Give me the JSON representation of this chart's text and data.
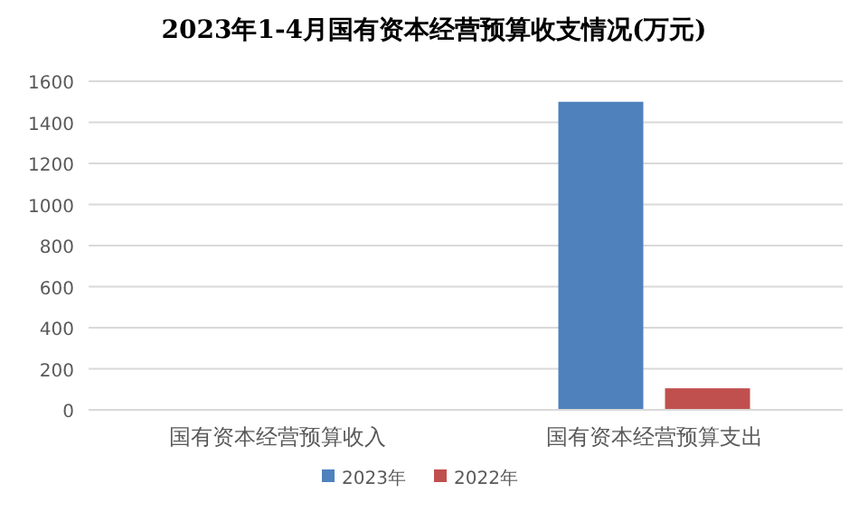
{
  "chart_data": {
    "type": "bar",
    "title": "2023年1-4月国有资本经营预算收支情况(万元)",
    "categories": [
      "国有资本经营预算收入",
      "国有资本经营预算支出"
    ],
    "series": [
      {
        "name": "2023年",
        "color": "#4f81bd",
        "values": [
          0,
          1500
        ]
      },
      {
        "name": "2022年",
        "color": "#c0504d",
        "values": [
          0,
          105
        ]
      }
    ],
    "ylim": [
      0,
      1600
    ],
    "yticks": [
      0,
      200,
      400,
      600,
      800,
      1000,
      1200,
      1400,
      1600
    ],
    "grid": "y",
    "legend": "bottom"
  }
}
